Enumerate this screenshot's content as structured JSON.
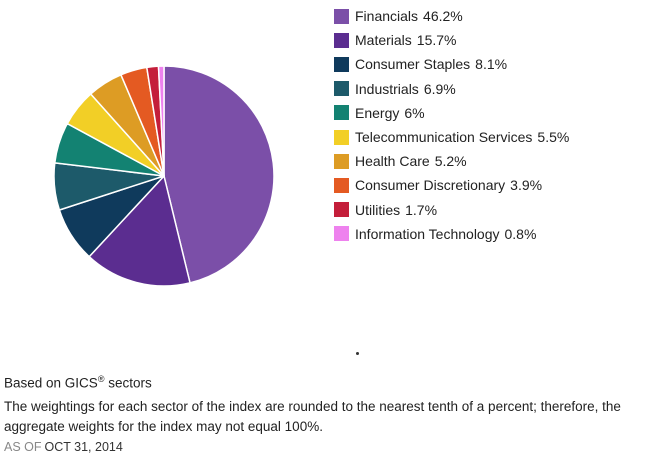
{
  "chart_data": {
    "type": "pie",
    "series": [
      {
        "name": "Financials",
        "display": "46.2%",
        "value": 46.2,
        "color": "#7b4fa8"
      },
      {
        "name": "Materials",
        "display": "15.7%",
        "value": 15.7,
        "color": "#5b2d90"
      },
      {
        "name": "Consumer Staples",
        "display": "8.1%",
        "value": 8.1,
        "color": "#0f3a5c"
      },
      {
        "name": "Industrials",
        "display": "6.9%",
        "value": 6.9,
        "color": "#1d5a6a"
      },
      {
        "name": "Energy",
        "display": "6%",
        "value": 6.0,
        "color": "#138272"
      },
      {
        "name": "Telecommunication Services",
        "display": "5.5%",
        "value": 5.5,
        "color": "#f2cf26"
      },
      {
        "name": "Health Care",
        "display": "5.2%",
        "value": 5.2,
        "color": "#dd9c24"
      },
      {
        "name": "Consumer Discretionary",
        "display": "3.9%",
        "value": 3.9,
        "color": "#e45a22"
      },
      {
        "name": "Utilities",
        "display": "1.7%",
        "value": 1.7,
        "color": "#c41e3a"
      },
      {
        "name": "Information Technology",
        "display": "0.8%",
        "value": 0.8,
        "color": "#ee82ee"
      }
    ],
    "legend_position": "right"
  },
  "footnote": {
    "basis_text": "Based on GICS",
    "basis_mark": "®",
    "basis_suffix": " sectors",
    "note": "The weightings for each sector of the index are rounded to the nearest tenth of a percent; therefore, the aggregate weights for the index may not equal 100%.",
    "as_of_label": "AS OF",
    "as_of_date": "OCT 31, 2014"
  }
}
